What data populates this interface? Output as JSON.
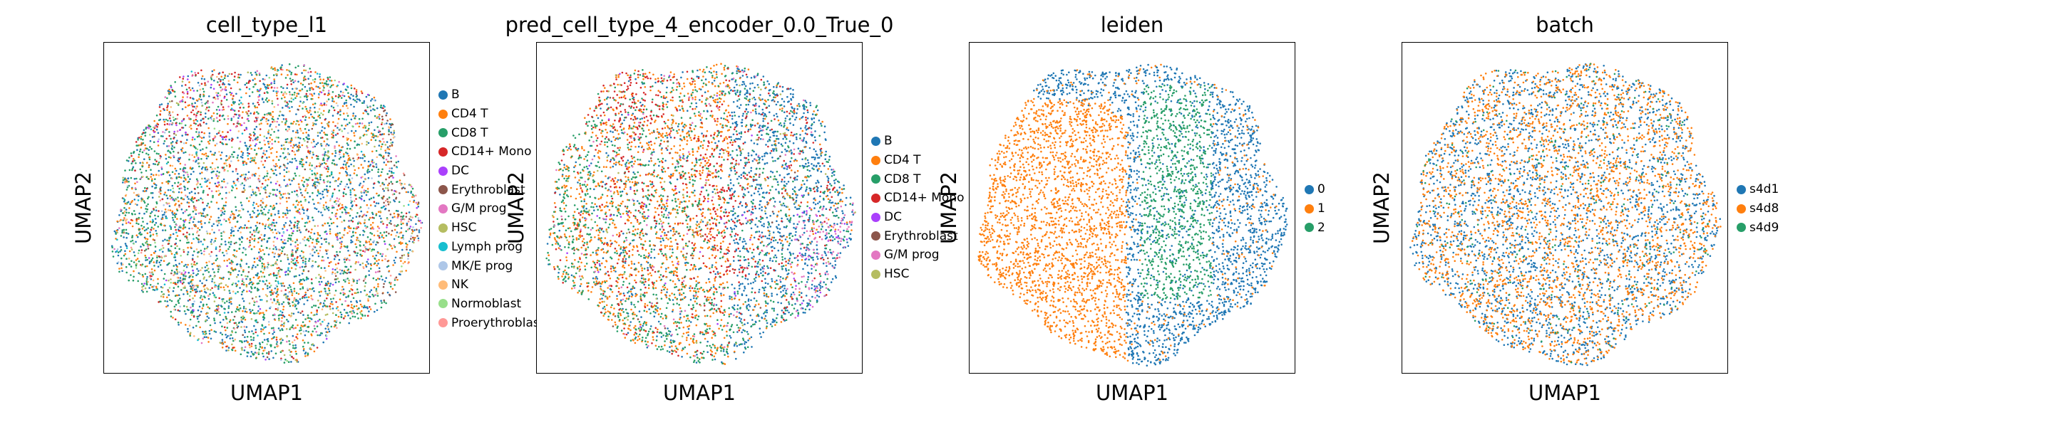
{
  "chart_data": [
    {
      "type": "scatter",
      "title": "cell_type_l1",
      "xlabel": "UMAP1",
      "ylabel": "UMAP2",
      "legend_position": "right",
      "series": [
        {
          "name": "B",
          "color": "#1f77b4"
        },
        {
          "name": "CD4 T",
          "color": "#ff7f0e"
        },
        {
          "name": "CD8 T",
          "color": "#279e68"
        },
        {
          "name": "CD14+ Mono",
          "color": "#d62728"
        },
        {
          "name": "DC",
          "color": "#aa40fc"
        },
        {
          "name": "Erythroblast",
          "color": "#8c564b"
        },
        {
          "name": "G/M prog",
          "color": "#e377c2"
        },
        {
          "name": "HSC",
          "color": "#b5bd61"
        },
        {
          "name": "Lymph prog",
          "color": "#17becf"
        },
        {
          "name": "MK/E prog",
          "color": "#aec7e8"
        },
        {
          "name": "NK",
          "color": "#ffbb78"
        },
        {
          "name": "Normoblast",
          "color": "#98df8a"
        },
        {
          "name": "Proerythroblast",
          "color": "#ff9896"
        }
      ]
    },
    {
      "type": "scatter",
      "title": "pred_cell_type_4_encoder_0.0_True_0",
      "xlabel": "UMAP1",
      "ylabel": "UMAP2",
      "legend_position": "right",
      "series": [
        {
          "name": "B",
          "color": "#1f77b4"
        },
        {
          "name": "CD4 T",
          "color": "#ff7f0e"
        },
        {
          "name": "CD8 T",
          "color": "#279e68"
        },
        {
          "name": "CD14+ Mono",
          "color": "#d62728"
        },
        {
          "name": "DC",
          "color": "#aa40fc"
        },
        {
          "name": "Erythroblast",
          "color": "#8c564b"
        },
        {
          "name": "G/M prog",
          "color": "#e377c2"
        },
        {
          "name": "HSC",
          "color": "#b5bd61"
        }
      ]
    },
    {
      "type": "scatter",
      "title": "leiden",
      "xlabel": "UMAP1",
      "ylabel": "UMAP2",
      "legend_position": "right",
      "series": [
        {
          "name": "0",
          "color": "#1f77b4"
        },
        {
          "name": "1",
          "color": "#ff7f0e"
        },
        {
          "name": "2",
          "color": "#279e68"
        }
      ]
    },
    {
      "type": "scatter",
      "title": "batch",
      "xlabel": "UMAP1",
      "ylabel": "UMAP2",
      "legend_position": "right",
      "series": [
        {
          "name": "s4d1",
          "color": "#1f77b4"
        },
        {
          "name": "s4d8",
          "color": "#ff7f0e"
        },
        {
          "name": "s4d9",
          "color": "#279e68"
        }
      ]
    }
  ]
}
